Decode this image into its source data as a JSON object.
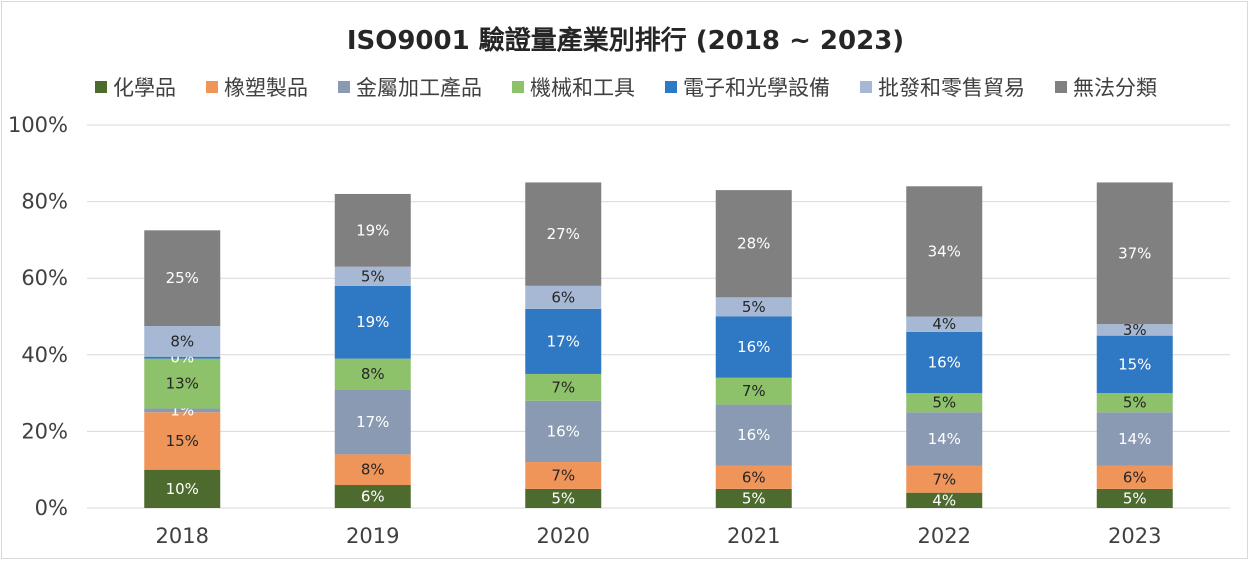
{
  "chart_data": {
    "type": "bar",
    "stacked": true,
    "title": "ISO9001 驗證量產業別排行 (2018 ~ 2023)",
    "xlabel": "",
    "ylabel": "",
    "ylim": [
      0,
      100
    ],
    "y_ticks": [
      "0%",
      "20%",
      "40%",
      "60%",
      "80%",
      "100%"
    ],
    "categories": [
      "2018",
      "2019",
      "2020",
      "2021",
      "2022",
      "2023"
    ],
    "grid": true,
    "legend_position": "top",
    "series": [
      {
        "name": "化學品",
        "color": "#4e6b2f",
        "label_color": "#ffffff",
        "values": [
          10,
          6,
          5,
          5,
          4,
          5
        ],
        "labels": [
          "10%",
          "6%",
          "5%",
          "5%",
          "4%",
          "5%"
        ]
      },
      {
        "name": "橡塑製品",
        "color": "#f0955a",
        "label_color": "#262626",
        "values": [
          15,
          8,
          7,
          6,
          7,
          6
        ],
        "labels": [
          "15%",
          "8%",
          "7%",
          "6%",
          "7%",
          "6%"
        ]
      },
      {
        "name": "金屬加工產品",
        "color": "#8a9ab2",
        "label_color": "#ffffff",
        "values": [
          1,
          17,
          16,
          16,
          14,
          14
        ],
        "labels": [
          "1%",
          "17%",
          "16%",
          "16%",
          "14%",
          "14%"
        ]
      },
      {
        "name": "機械和工具",
        "color": "#8dc26a",
        "label_color": "#262626",
        "values": [
          13,
          8,
          7,
          7,
          5,
          5
        ],
        "labels": [
          "13%",
          "8%",
          "7%",
          "7%",
          "5%",
          "5%"
        ]
      },
      {
        "name": "電子和光學設備",
        "color": "#2f78c4",
        "label_color": "#ffffff",
        "values": [
          0.5,
          19,
          17,
          16,
          16,
          15
        ],
        "labels": [
          "0%",
          "19%",
          "17%",
          "16%",
          "16%",
          "15%"
        ]
      },
      {
        "name": "批發和零售貿易",
        "color": "#a6b8d4",
        "label_color": "#262626",
        "values": [
          8,
          5,
          6,
          5,
          4,
          3
        ],
        "labels": [
          "8%",
          "5%",
          "6%",
          "5%",
          "4%",
          "3%"
        ]
      },
      {
        "name": "無法分類",
        "color": "#808080",
        "label_color": "#ffffff",
        "values": [
          25,
          19,
          27,
          28,
          34,
          37
        ],
        "labels": [
          "25%",
          "19%",
          "27%",
          "28%",
          "34%",
          "37%"
        ]
      }
    ]
  }
}
